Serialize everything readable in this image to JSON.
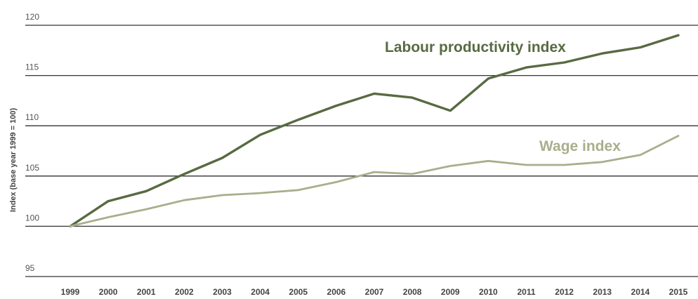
{
  "chart_data": {
    "type": "line",
    "title": "",
    "xlabel": "",
    "ylabel": "Index (base year 1999 = 100)",
    "ylim": [
      95,
      120
    ],
    "yticks": [
      95,
      100,
      105,
      110,
      115,
      120
    ],
    "grid": true,
    "legend": "inline labels",
    "x": [
      "1999",
      "2000",
      "2001",
      "2002",
      "2003",
      "2004",
      "2005",
      "2006",
      "2007",
      "2008",
      "2009",
      "2010",
      "2011",
      "2012",
      "2013",
      "2014",
      "2015"
    ],
    "series": [
      {
        "name": "Labour productivity index",
        "color": "#586a42",
        "values": [
          100,
          102.5,
          103.5,
          105.2,
          106.8,
          109.1,
          110.6,
          112.0,
          113.2,
          112.8,
          111.5,
          114.7,
          115.8,
          116.3,
          117.2,
          117.8,
          119.0
        ]
      },
      {
        "name": "Wage index",
        "color": "#a9ae8c",
        "values": [
          100,
          100.9,
          101.7,
          102.6,
          103.1,
          103.3,
          103.6,
          104.4,
          105.4,
          105.2,
          106.0,
          106.5,
          106.1,
          106.1,
          106.4,
          107.1,
          109.0
        ]
      }
    ]
  }
}
